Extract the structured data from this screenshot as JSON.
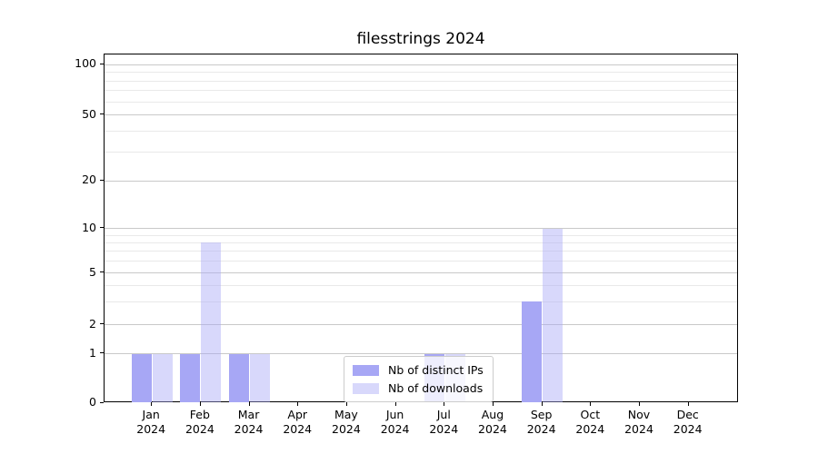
{
  "chart_data": {
    "type": "bar",
    "title": "filesstrings 2024",
    "categories": [
      "Jan",
      "Feb",
      "Mar",
      "Apr",
      "May",
      "Jun",
      "Jul",
      "Aug",
      "Sep",
      "Oct",
      "Nov",
      "Dec"
    ],
    "category_sublabel": "2024",
    "series": [
      {
        "name": "Nb of distinct IPs",
        "color": "#a7a7f5",
        "values": [
          1,
          1,
          1,
          0,
          0,
          0,
          1,
          0,
          3,
          0,
          0,
          0
        ]
      },
      {
        "name": "Nb of downloads",
        "color": "rgba(167,167,245,0.44)",
        "values": [
          1,
          8,
          1,
          0,
          0,
          0,
          1,
          0,
          10,
          0,
          0,
          0
        ]
      }
    ],
    "yscale": "symlog",
    "y_ticks_major": [
      0,
      1,
      2,
      5,
      10,
      20,
      50,
      100
    ],
    "y_grid_minor": [
      3,
      4,
      6,
      7,
      8,
      9,
      30,
      40,
      60,
      70,
      80,
      90
    ],
    "ylim": [
      0,
      115
    ],
    "grid": true,
    "legend_position": "lower center",
    "colors": {
      "grid_major": "#c9c9c9",
      "grid_minor": "#e9e9e9",
      "spine": "#000000",
      "legend_border": "#cccccc"
    }
  }
}
